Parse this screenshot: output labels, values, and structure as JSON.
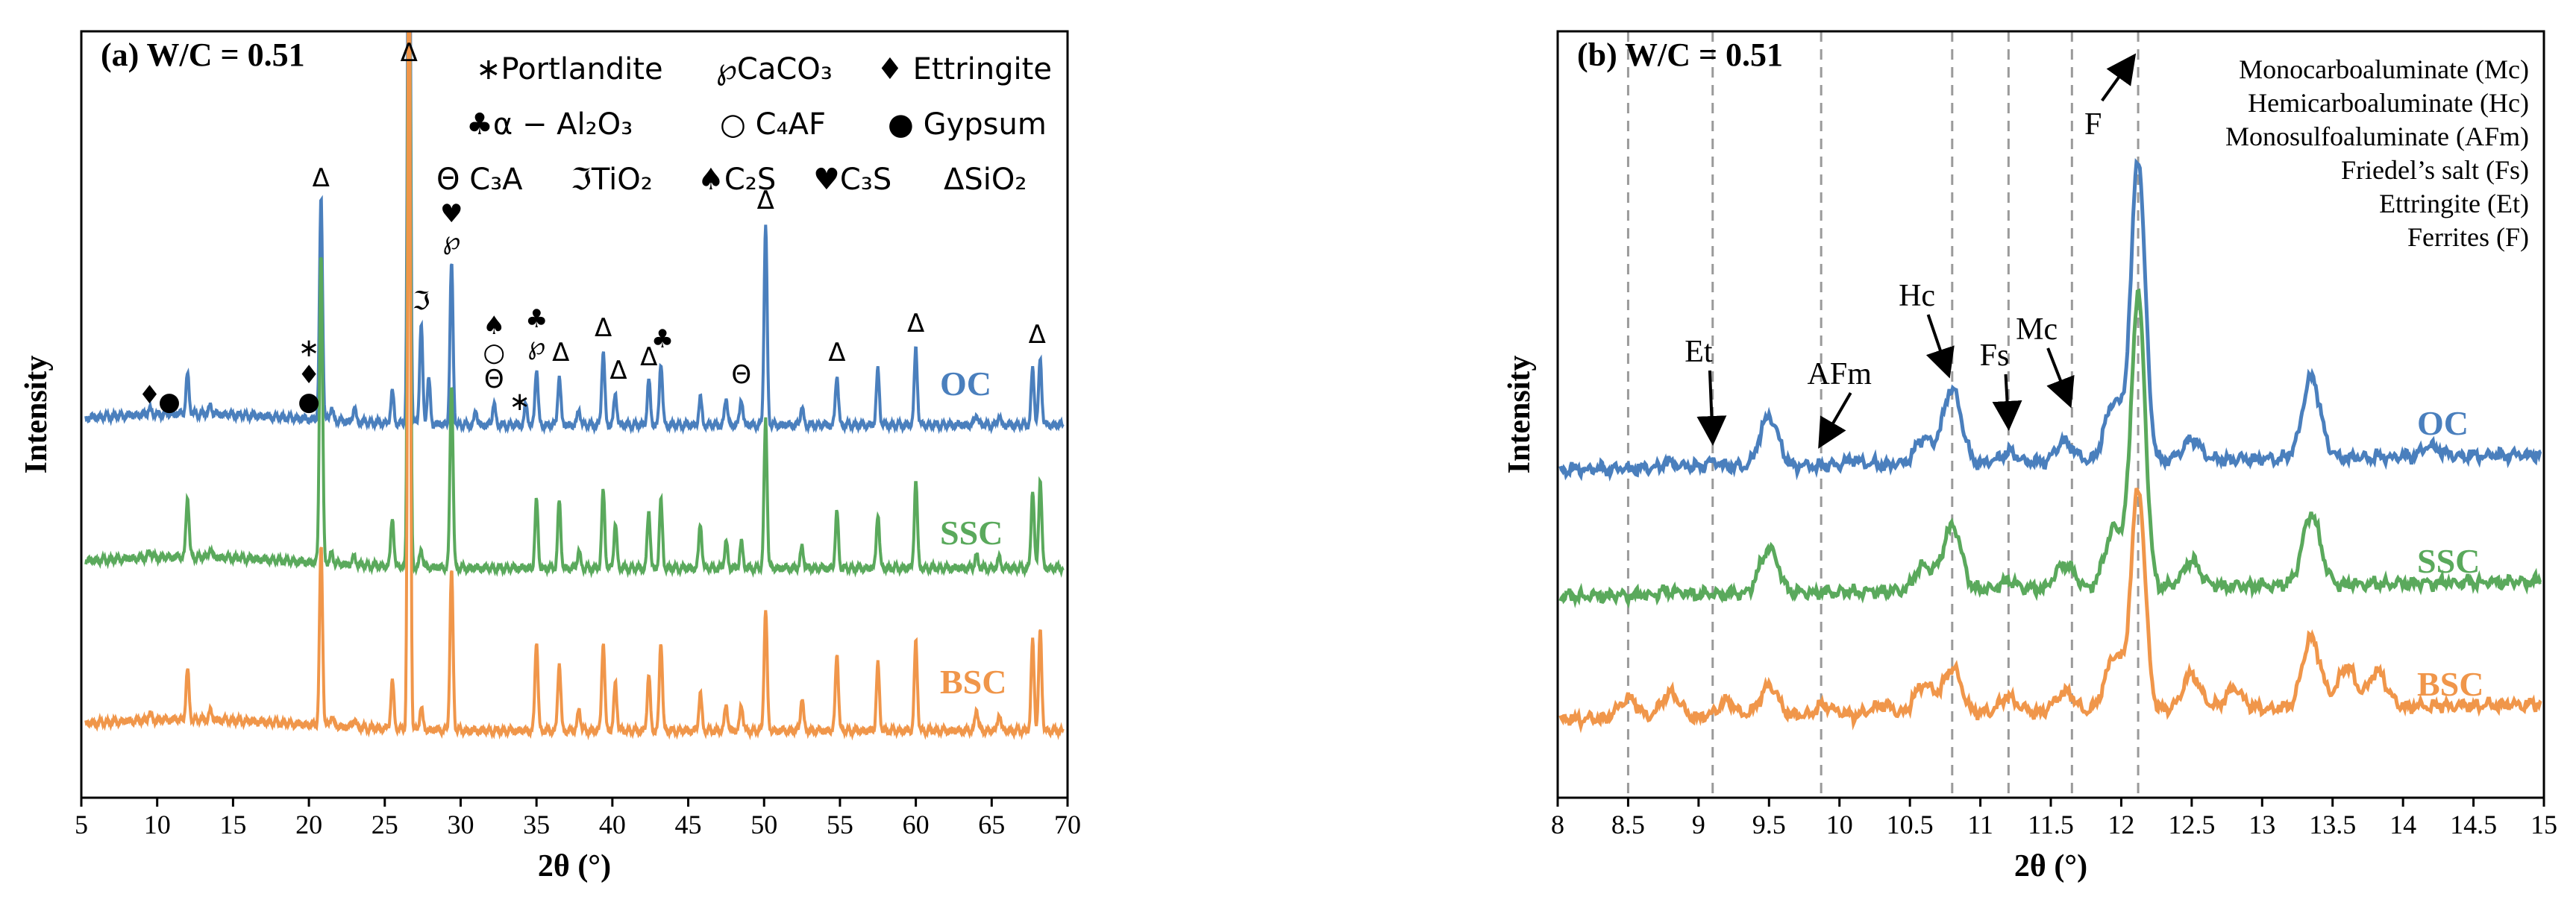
{
  "chart_data": [
    {
      "type": "line",
      "panel_label": "(a) W/C = 0.51",
      "xlabel": "2θ (°)",
      "ylabel": "Intensity",
      "xlim": [
        5,
        70
      ],
      "xticks": [
        5,
        10,
        15,
        20,
        25,
        30,
        35,
        40,
        45,
        50,
        55,
        60,
        65,
        70
      ],
      "series": [
        {
          "name": "OC",
          "color": "#4a7fbd",
          "offset": 2,
          "peaks": [
            [
              9.5,
              0.03
            ],
            [
              12.0,
              0.18
            ],
            [
              13.5,
              0.04
            ],
            [
              20.8,
              1.0
            ],
            [
              21.5,
              0.06
            ],
            [
              23.0,
              0.06
            ],
            [
              25.5,
              0.14
            ],
            [
              26.6,
              4.0
            ],
            [
              27.4,
              0.45
            ],
            [
              27.9,
              0.2
            ],
            [
              29.4,
              0.72
            ],
            [
              31.0,
              0.06
            ],
            [
              32.2,
              0.1
            ],
            [
              34.3,
              0.09
            ],
            [
              35.0,
              0.25
            ],
            [
              36.5,
              0.22
            ],
            [
              37.8,
              0.07
            ],
            [
              39.4,
              0.33
            ],
            [
              40.2,
              0.14
            ],
            [
              42.4,
              0.2
            ],
            [
              43.2,
              0.28
            ],
            [
              45.8,
              0.12
            ],
            [
              47.5,
              0.12
            ],
            [
              48.5,
              0.12
            ],
            [
              50.1,
              0.9
            ],
            [
              52.5,
              0.08
            ],
            [
              54.8,
              0.22
            ],
            [
              57.5,
              0.25
            ],
            [
              60.0,
              0.35
            ],
            [
              64.0,
              0.05
            ],
            [
              65.5,
              0.04
            ],
            [
              67.7,
              0.25
            ],
            [
              68.2,
              0.3
            ]
          ]
        },
        {
          "name": "SSC",
          "color": "#5aa95c",
          "offset": 1,
          "peaks": [
            [
              9.5,
              0.03
            ],
            [
              12.0,
              0.27
            ],
            [
              13.5,
              0.04
            ],
            [
              20.8,
              1.4
            ],
            [
              21.5,
              0.05
            ],
            [
              23.0,
              0.04
            ],
            [
              25.5,
              0.22
            ],
            [
              26.6,
              4.0
            ],
            [
              27.4,
              0.08
            ],
            [
              29.4,
              0.82
            ],
            [
              35.0,
              0.3
            ],
            [
              36.5,
              0.3
            ],
            [
              37.8,
              0.08
            ],
            [
              39.4,
              0.35
            ],
            [
              40.2,
              0.2
            ],
            [
              42.4,
              0.25
            ],
            [
              43.2,
              0.3
            ],
            [
              45.8,
              0.2
            ],
            [
              47.5,
              0.12
            ],
            [
              48.5,
              0.12
            ],
            [
              50.1,
              0.67
            ],
            [
              52.5,
              0.1
            ],
            [
              54.8,
              0.25
            ],
            [
              57.5,
              0.25
            ],
            [
              60.0,
              0.4
            ],
            [
              64.0,
              0.06
            ],
            [
              65.5,
              0.05
            ],
            [
              67.7,
              0.35
            ],
            [
              68.2,
              0.4
            ]
          ]
        },
        {
          "name": "BSC",
          "color": "#f0964a",
          "offset": 0,
          "peaks": [
            [
              9.5,
              0.03
            ],
            [
              12.0,
              0.22
            ],
            [
              13.5,
              0.04
            ],
            [
              20.8,
              0.8
            ],
            [
              21.5,
              0.05
            ],
            [
              23.0,
              0.04
            ],
            [
              25.5,
              0.22
            ],
            [
              26.6,
              4.0
            ],
            [
              27.4,
              0.1
            ],
            [
              29.4,
              0.72
            ],
            [
              35.0,
              0.4
            ],
            [
              36.5,
              0.3
            ],
            [
              37.8,
              0.1
            ],
            [
              39.4,
              0.4
            ],
            [
              40.2,
              0.22
            ],
            [
              42.4,
              0.25
            ],
            [
              43.2,
              0.4
            ],
            [
              45.8,
              0.17
            ],
            [
              47.5,
              0.12
            ],
            [
              48.5,
              0.12
            ],
            [
              50.1,
              0.55
            ],
            [
              52.5,
              0.15
            ],
            [
              54.8,
              0.35
            ],
            [
              57.5,
              0.3
            ],
            [
              60.0,
              0.4
            ],
            [
              64.0,
              0.1
            ],
            [
              65.5,
              0.08
            ],
            [
              67.7,
              0.4
            ],
            [
              68.2,
              0.45
            ]
          ]
        }
      ],
      "legend": {
        "row1": [
          "∗Portlandite",
          "℘CaCO₃",
          "♦ Ettringite"
        ],
        "row2": [
          "♣α − Al₂O₃",
          "○ C₄AF",
          "● Gypsum"
        ],
        "row3": [
          "Θ C₃A",
          "ℑTiO₂",
          "♠C₂S",
          "♥C₃S",
          "ΔSiO₂"
        ]
      },
      "peak_markers": [
        {
          "x": 9.5,
          "symbol": "♦"
        },
        {
          "x": 10.8,
          "symbol": "●"
        },
        {
          "x": 20.0,
          "symbol": "●"
        },
        {
          "x": 20.0,
          "symbol": "♦"
        },
        {
          "x": 20.0,
          "symbol": "∗"
        },
        {
          "x": 20.8,
          "symbol": "Δ"
        },
        {
          "x": 26.6,
          "symbol": "Δ"
        },
        {
          "x": 27.4,
          "symbol": "ℑ"
        },
        {
          "x": 29.4,
          "symbol": "℘"
        },
        {
          "x": 29.4,
          "symbol": "♥"
        },
        {
          "x": 32.2,
          "symbol": "Θ"
        },
        {
          "x": 32.2,
          "symbol": "○"
        },
        {
          "x": 32.2,
          "symbol": "♠"
        },
        {
          "x": 33.9,
          "symbol": "∗"
        },
        {
          "x": 35.0,
          "symbol": "℘"
        },
        {
          "x": 35.0,
          "symbol": "♣"
        },
        {
          "x": 36.6,
          "symbol": "Δ"
        },
        {
          "x": 39.4,
          "symbol": "Δ"
        },
        {
          "x": 40.4,
          "symbol": "Δ"
        },
        {
          "x": 42.4,
          "symbol": "Δ"
        },
        {
          "x": 43.3,
          "symbol": "♣"
        },
        {
          "x": 48.5,
          "symbol": "Θ"
        },
        {
          "x": 50.1,
          "symbol": "Δ"
        },
        {
          "x": 54.8,
          "symbol": "Δ"
        },
        {
          "x": 60.0,
          "symbol": "Δ"
        },
        {
          "x": 68.0,
          "symbol": "Δ"
        }
      ]
    },
    {
      "type": "line",
      "panel_label": "(b)  W/C = 0.51",
      "xlabel": "2θ (°)",
      "ylabel": "Intensity",
      "xlim": [
        8,
        15
      ],
      "xticks": [
        8,
        8.5,
        9,
        9.5,
        10,
        10.5,
        11,
        11.5,
        12,
        12.5,
        13,
        13.5,
        14,
        14.5,
        15
      ],
      "reference_lines": [
        8.5,
        9.1,
        9.87,
        10.8,
        11.2,
        11.65,
        12.12
      ],
      "series": [
        {
          "name": "OC",
          "color": "#4a7fbd",
          "offset": 2,
          "peaks": [
            [
              8.8,
              0.05
            ],
            [
              9.1,
              0.05
            ],
            [
              9.5,
              0.5
            ],
            [
              10.1,
              0.05
            ],
            [
              10.6,
              0.25
            ],
            [
              10.8,
              0.75
            ],
            [
              11.2,
              0.1
            ],
            [
              11.6,
              0.2
            ],
            [
              11.95,
              0.6
            ],
            [
              12.12,
              3.0
            ],
            [
              12.5,
              0.2
            ],
            [
              13.35,
              0.8
            ],
            [
              14.2,
              0.1
            ]
          ]
        },
        {
          "name": "SSC",
          "color": "#5aa95c",
          "offset": 1,
          "peaks": [
            [
              8.8,
              0.04
            ],
            [
              9.5,
              0.45
            ],
            [
              10.6,
              0.25
            ],
            [
              10.8,
              0.65
            ],
            [
              11.2,
              0.08
            ],
            [
              11.6,
              0.25
            ],
            [
              11.95,
              0.6
            ],
            [
              12.12,
              2.9
            ],
            [
              12.5,
              0.25
            ],
            [
              13.35,
              0.7
            ]
          ]
        },
        {
          "name": "BSC",
          "color": "#f0964a",
          "offset": 0,
          "peaks": [
            [
              8.5,
              0.2
            ],
            [
              8.8,
              0.25
            ],
            [
              9.2,
              0.15
            ],
            [
              9.5,
              0.3
            ],
            [
              9.9,
              0.1
            ],
            [
              10.3,
              0.1
            ],
            [
              10.6,
              0.3
            ],
            [
              10.8,
              0.45
            ],
            [
              11.2,
              0.15
            ],
            [
              11.6,
              0.2
            ],
            [
              11.95,
              0.55
            ],
            [
              12.12,
              2.2
            ],
            [
              12.5,
              0.35
            ],
            [
              12.8,
              0.2
            ],
            [
              13.35,
              0.7
            ],
            [
              13.6,
              0.4
            ],
            [
              13.82,
              0.35
            ]
          ]
        }
      ],
      "legend": [
        "Monocarboaluminate (Mc)",
        "Hemicarboaluminate (Hc)",
        "Monosulfoaluminate (AFm)",
        "Friedel’s salt (Fs)",
        "Ettringite (Et)",
        "Ferrites (F)"
      ],
      "annotations": [
        {
          "label": "Et",
          "x": 9.1
        },
        {
          "label": "AFm",
          "x": 9.87
        },
        {
          "label": "Hc",
          "x": 10.8
        },
        {
          "label": "Fs",
          "x": 11.2
        },
        {
          "label": "Mc",
          "x": 11.65
        },
        {
          "label": "F",
          "x": 12.12
        }
      ]
    }
  ]
}
